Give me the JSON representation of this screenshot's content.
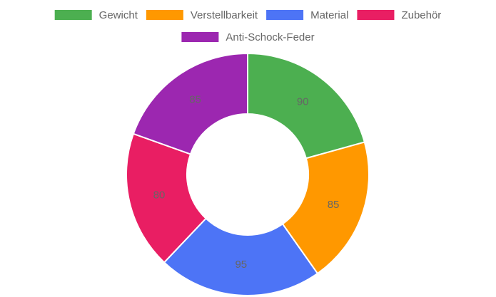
{
  "chart_data": {
    "type": "doughnut",
    "categories": [
      "Gewicht",
      "Verstellbarkeit",
      "Material",
      "Zubehör",
      "Anti-Schock-Feder"
    ],
    "values": [
      90,
      85,
      95,
      80,
      85
    ],
    "colors": [
      "#4caf50",
      "#ff9800",
      "#4d74f6",
      "#e91e63",
      "#9c27b0"
    ],
    "legend": "top"
  }
}
